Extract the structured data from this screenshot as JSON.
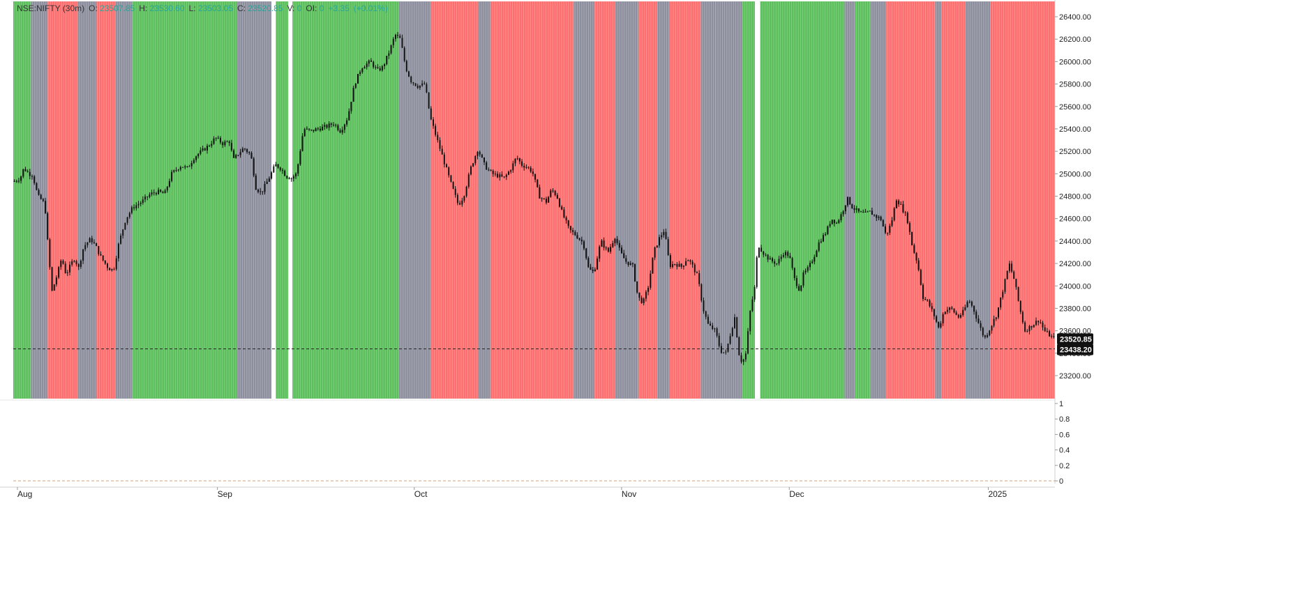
{
  "legend": {
    "symbol": "NSE:NIFTY (30m)",
    "open_label": "O:",
    "open": "23507.85",
    "high_label": "H:",
    "high": "23530.60",
    "low_label": "L:",
    "low": "23503.05",
    "close_label": "C:",
    "close": "23520.85",
    "vol_label": "V:",
    "vol": "0",
    "oi_label": "OI:",
    "oi": "0",
    "change": "+3.35",
    "change_pct": "(+0.01%)"
  },
  "price_tags": {
    "last_price": "23520.85",
    "reference_price": "23438.20"
  },
  "colors": {
    "bull": "#5bbf5b",
    "bear": "#ff6e6e",
    "neutral": "#8d8f9e",
    "gap": "#ffffff",
    "candle": "#111111",
    "up_text": "#26a69a"
  },
  "chart_data": {
    "type": "candlestick",
    "price_axis": {
      "range": [
        23000,
        26500
      ],
      "ticks": [
        "23200.00",
        "23400.00",
        "23600.00",
        "23800.00",
        "24000.00",
        "24200.00",
        "24400.00",
        "24600.00",
        "24800.00",
        "25000.00",
        "25200.00",
        "25400.00",
        "25600.00",
        "25800.00",
        "26000.00",
        "26200.00",
        "26400.00"
      ]
    },
    "oscillator_axis": {
      "range": [
        0,
        1
      ],
      "ticks": [
        "1",
        "0.8",
        "0.6",
        "0.4",
        "0.2",
        "0"
      ]
    },
    "reference_line": 23438.2,
    "time_labels": [
      {
        "label": "Aug",
        "t": 0.004
      },
      {
        "label": "Sep",
        "t": 0.196
      },
      {
        "label": "Oct",
        "t": 0.385
      },
      {
        "label": "Nov",
        "t": 0.584
      },
      {
        "label": "Dec",
        "t": 0.745
      },
      {
        "label": "2025",
        "t": 0.936
      }
    ],
    "regimes": [
      {
        "from": 0.0,
        "to": 0.017,
        "state": "bull"
      },
      {
        "from": 0.017,
        "to": 0.033,
        "state": "neutral"
      },
      {
        "from": 0.033,
        "to": 0.062,
        "state": "bear"
      },
      {
        "from": 0.062,
        "to": 0.08,
        "state": "neutral"
      },
      {
        "from": 0.08,
        "to": 0.098,
        "state": "bear"
      },
      {
        "from": 0.098,
        "to": 0.114,
        "state": "neutral"
      },
      {
        "from": 0.114,
        "to": 0.215,
        "state": "bull"
      },
      {
        "from": 0.215,
        "to": 0.248,
        "state": "neutral"
      },
      {
        "from": 0.248,
        "to": 0.252,
        "state": "gap"
      },
      {
        "from": 0.252,
        "to": 0.264,
        "state": "bull"
      },
      {
        "from": 0.264,
        "to": 0.268,
        "state": "gap"
      },
      {
        "from": 0.268,
        "to": 0.37,
        "state": "bull"
      },
      {
        "from": 0.37,
        "to": 0.401,
        "state": "neutral"
      },
      {
        "from": 0.401,
        "to": 0.446,
        "state": "bear"
      },
      {
        "from": 0.446,
        "to": 0.458,
        "state": "neutral"
      },
      {
        "from": 0.458,
        "to": 0.538,
        "state": "bear"
      },
      {
        "from": 0.538,
        "to": 0.558,
        "state": "neutral"
      },
      {
        "from": 0.558,
        "to": 0.578,
        "state": "bear"
      },
      {
        "from": 0.578,
        "to": 0.6,
        "state": "neutral"
      },
      {
        "from": 0.6,
        "to": 0.618,
        "state": "bear"
      },
      {
        "from": 0.618,
        "to": 0.63,
        "state": "neutral"
      },
      {
        "from": 0.63,
        "to": 0.66,
        "state": "bear"
      },
      {
        "from": 0.66,
        "to": 0.674,
        "state": "neutral"
      },
      {
        "from": 0.674,
        "to": 0.7,
        "state": "neutral"
      },
      {
        "from": 0.7,
        "to": 0.712,
        "state": "bull"
      },
      {
        "from": 0.712,
        "to": 0.717,
        "state": "gap"
      },
      {
        "from": 0.717,
        "to": 0.798,
        "state": "bull"
      },
      {
        "from": 0.798,
        "to": 0.808,
        "state": "neutral"
      },
      {
        "from": 0.808,
        "to": 0.823,
        "state": "bull"
      },
      {
        "from": 0.823,
        "to": 0.838,
        "state": "neutral"
      },
      {
        "from": 0.838,
        "to": 0.885,
        "state": "bear"
      },
      {
        "from": 0.885,
        "to": 0.891,
        "state": "neutral"
      },
      {
        "from": 0.891,
        "to": 0.914,
        "state": "bear"
      },
      {
        "from": 0.914,
        "to": 0.938,
        "state": "neutral"
      },
      {
        "from": 0.938,
        "to": 1.0,
        "state": "bear"
      }
    ],
    "price_path": [
      [
        0.0,
        24930
      ],
      [
        0.008,
        24960
      ],
      [
        0.012,
        25050
      ],
      [
        0.018,
        25000
      ],
      [
        0.022,
        24990
      ],
      [
        0.028,
        24800
      ],
      [
        0.033,
        24760
      ],
      [
        0.036,
        24720
      ],
      [
        0.04,
        24300
      ],
      [
        0.044,
        23950
      ],
      [
        0.05,
        24100
      ],
      [
        0.055,
        24250
      ],
      [
        0.06,
        24100
      ],
      [
        0.066,
        24200
      ],
      [
        0.07,
        24250
      ],
      [
        0.074,
        24150
      ],
      [
        0.08,
        24350
      ],
      [
        0.088,
        24420
      ],
      [
        0.094,
        24350
      ],
      [
        0.1,
        24250
      ],
      [
        0.108,
        24160
      ],
      [
        0.114,
        24140
      ],
      [
        0.12,
        24380
      ],
      [
        0.128,
        24600
      ],
      [
        0.136,
        24700
      ],
      [
        0.146,
        24750
      ],
      [
        0.156,
        24820
      ],
      [
        0.164,
        24840
      ],
      [
        0.172,
        24820
      ],
      [
        0.18,
        25000
      ],
      [
        0.19,
        25070
      ],
      [
        0.198,
        25050
      ],
      [
        0.206,
        25150
      ],
      [
        0.214,
        25200
      ],
      [
        0.222,
        25250
      ],
      [
        0.23,
        25320
      ],
      [
        0.238,
        25270
      ],
      [
        0.246,
        25290
      ],
      [
        0.25,
        25120
      ],
      [
        0.256,
        25180
      ],
      [
        0.262,
        25230
      ],
      [
        0.27,
        25170
      ],
      [
        0.276,
        24870
      ],
      [
        0.282,
        24830
      ],
      [
        0.29,
        24950
      ],
      [
        0.298,
        25080
      ],
      [
        0.304,
        25050
      ],
      [
        0.31,
        24980
      ],
      [
        0.316,
        24960
      ],
      [
        0.322,
        25000
      ],
      [
        0.33,
        25400
      ],
      [
        0.338,
        25380
      ],
      [
        0.346,
        25400
      ],
      [
        0.356,
        25420
      ],
      [
        0.364,
        25450
      ],
      [
        0.372,
        25380
      ],
      [
        0.38,
        25500
      ],
      [
        0.388,
        25800
      ],
      [
        0.396,
        25950
      ],
      [
        0.406,
        26000
      ],
      [
        0.414,
        25920
      ],
      [
        0.42,
        25950
      ],
      [
        0.428,
        26100
      ],
      [
        0.434,
        26240
      ],
      [
        0.44,
        26200
      ],
      [
        0.446,
        25950
      ],
      [
        0.452,
        25830
      ],
      [
        0.46,
        25780
      ],
      [
        0.468,
        25800
      ],
      [
        0.474,
        25500
      ],
      [
        0.482,
        25300
      ],
      [
        0.49,
        25100
      ],
      [
        0.498,
        24900
      ],
      [
        0.506,
        24720
      ],
      [
        0.512,
        24800
      ],
      [
        0.52,
        25050
      ],
      [
        0.528,
        25220
      ],
      [
        0.536,
        25070
      ],
      [
        0.544,
        25000
      ],
      [
        0.552,
        24980
      ],
      [
        0.558,
        24960
      ],
      [
        0.566,
        25050
      ],
      [
        0.572,
        25150
      ],
      [
        0.578,
        25080
      ],
      [
        0.584,
        25060
      ],
      [
        0.59,
        25020
      ],
      [
        0.598,
        24800
      ],
      [
        0.606,
        24750
      ],
      [
        0.612,
        24860
      ],
      [
        0.618,
        24800
      ],
      [
        0.624,
        24650
      ],
      [
        0.632,
        24500
      ],
      [
        0.64,
        24450
      ],
      [
        0.648,
        24380
      ],
      [
        0.654,
        24150
      ],
      [
        0.66,
        24120
      ],
      [
        0.668,
        24400
      ],
      [
        0.676,
        24300
      ],
      [
        0.684,
        24440
      ],
      [
        0.69,
        24300
      ],
      [
        0.696,
        24220
      ],
      [
        0.704,
        24180
      ],
      [
        0.71,
        23900
      ],
      [
        0.716,
        23850
      ],
      [
        0.722,
        24000
      ],
      [
        0.728,
        24300
      ],
      [
        0.734,
        24420
      ],
      [
        0.74,
        24500
      ],
      [
        0.746,
        24180
      ],
      [
        0.752,
        24200
      ],
      [
        0.76,
        24170
      ],
      [
        0.766,
        24250
      ],
      [
        0.772,
        24180
      ],
      [
        0.778,
        24080
      ],
      [
        0.784,
        23800
      ],
      [
        0.79,
        23650
      ],
      [
        0.798,
        23600
      ],
      [
        0.804,
        23420
      ],
      [
        0.81,
        23400
      ],
      [
        0.816,
        23600
      ],
      [
        0.82,
        23720
      ],
      [
        0.826,
        23330
      ],
      [
        0.832,
        23350
      ],
      [
        0.838,
        23800
      ],
      [
        0.842,
        23950
      ],
      [
        0.844,
        24050
      ],
      [
        0.846,
        24380
      ],
      [
        0.852,
        24300
      ],
      [
        0.86,
        24230
      ],
      [
        0.868,
        24200
      ],
      [
        0.876,
        24300
      ],
      [
        0.882,
        24270
      ],
      [
        0.888,
        24060
      ],
      [
        0.894,
        23960
      ],
      [
        0.898,
        24100
      ],
      [
        0.904,
        24160
      ],
      [
        0.91,
        24260
      ],
      [
        0.916,
        24390
      ],
      [
        0.924,
        24480
      ],
      [
        0.93,
        24600
      ],
      [
        0.936,
        24560
      ],
      [
        0.942,
        24650
      ],
      [
        0.948,
        24780
      ],
      [
        0.954,
        24700
      ],
      [
        0.962,
        24650
      ],
      [
        0.968,
        24640
      ],
      [
        0.974,
        24660
      ],
      [
        0.98,
        24620
      ],
      [
        0.986,
        24600
      ],
      [
        0.992,
        24450
      ],
      [
        0.998,
        24560
      ],
      [
        1.004,
        24780
      ],
      [
        1.01,
        24700
      ],
      [
        1.016,
        24600
      ],
      [
        1.022,
        24350
      ],
      [
        1.028,
        24200
      ],
      [
        1.034,
        23900
      ],
      [
        1.04,
        23850
      ],
      [
        1.046,
        23750
      ],
      [
        1.052,
        23620
      ],
      [
        1.058,
        23780
      ],
      [
        1.066,
        23800
      ],
      [
        1.074,
        23720
      ],
      [
        1.08,
        23770
      ],
      [
        1.086,
        23880
      ],
      [
        1.092,
        23780
      ],
      [
        1.098,
        23650
      ],
      [
        1.104,
        23530
      ],
      [
        1.11,
        23620
      ],
      [
        1.118,
        23750
      ],
      [
        1.126,
        24000
      ],
      [
        1.132,
        24200
      ],
      [
        1.138,
        24050
      ],
      [
        1.144,
        23800
      ],
      [
        1.15,
        23600
      ],
      [
        1.158,
        23650
      ],
      [
        1.166,
        23700
      ],
      [
        1.172,
        23600
      ],
      [
        1.178,
        23560
      ],
      [
        1.184,
        23520
      ]
    ]
  }
}
